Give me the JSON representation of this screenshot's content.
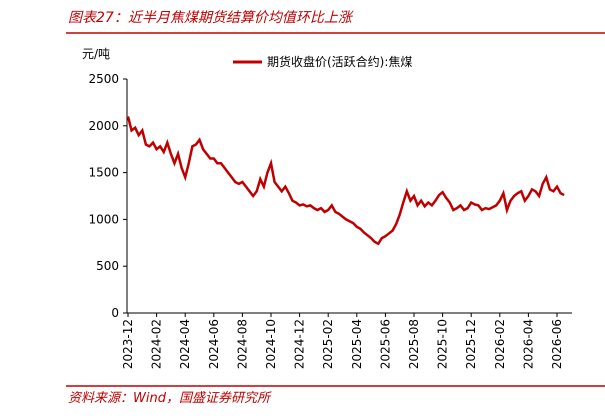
{
  "chart_data": {
    "type": "line",
    "title": "图表27：近半月焦煤期货结算价均值环比上涨",
    "y_label": "元/吨",
    "source": "资料来源：Wind，国盛证券研究所",
    "categories": [
      "2023-12",
      null,
      null,
      null,
      null,
      null,
      null,
      null,
      "2024-02",
      null,
      null,
      null,
      null,
      null,
      null,
      null,
      "2024-04",
      null,
      null,
      null,
      null,
      null,
      null,
      null,
      "2024-06",
      null,
      null,
      null,
      null,
      null,
      null,
      null,
      "2024-08",
      null,
      null,
      null,
      null,
      null,
      null,
      null,
      "2024-10",
      null,
      null,
      null,
      null,
      null,
      null,
      null,
      "2024-12",
      null,
      null,
      null,
      null,
      null,
      null,
      null,
      "2025-02",
      null,
      null,
      null,
      null,
      null,
      null,
      null,
      "2025-04",
      null,
      null,
      null,
      null,
      null,
      null,
      null,
      "2025-06",
      null,
      null,
      null,
      null,
      null,
      null,
      null,
      "2025-08",
      null,
      null,
      null,
      null,
      null,
      null,
      null,
      "2025-10",
      null,
      null,
      null,
      null,
      null,
      null,
      null,
      "2025-12",
      null,
      null,
      null,
      null,
      null,
      null,
      null,
      "2026-02",
      null,
      null,
      null,
      null,
      null,
      null,
      null,
      "2026-04",
      null,
      null,
      null,
      null,
      null,
      null,
      null,
      "2026-06",
      null,
      null
    ],
    "series": [
      {
        "name": "期货收盘价(活跃合约):焦煤",
        "color": "#c00000",
        "values": [
          2100,
          1950,
          1980,
          1900,
          1950,
          1800,
          1780,
          1820,
          1750,
          1780,
          1720,
          1820,
          1700,
          1600,
          1700,
          1550,
          1450,
          1600,
          1780,
          1800,
          1850,
          1750,
          1700,
          1650,
          1650,
          1600,
          1600,
          1550,
          1500,
          1450,
          1400,
          1380,
          1400,
          1350,
          1300,
          1250,
          1300,
          1430,
          1350,
          1500,
          1600,
          1400,
          1350,
          1300,
          1350,
          1280,
          1200,
          1180,
          1150,
          1160,
          1140,
          1150,
          1120,
          1100,
          1120,
          1080,
          1100,
          1150,
          1080,
          1060,
          1030,
          1000,
          980,
          960,
          920,
          900,
          860,
          830,
          800,
          760,
          740,
          800,
          820,
          850,
          880,
          950,
          1050,
          1180,
          1300,
          1200,
          1250,
          1150,
          1200,
          1140,
          1180,
          1150,
          1200,
          1260,
          1290,
          1230,
          1180,
          1100,
          1120,
          1150,
          1100,
          1120,
          1180,
          1160,
          1150,
          1100,
          1120,
          1110,
          1130,
          1150,
          1200,
          1280,
          1100,
          1200,
          1250,
          1280,
          1300,
          1200,
          1250,
          1320,
          1300,
          1250,
          1380,
          1450,
          1320,
          1300,
          1350,
          1280,
          1260
        ]
      }
    ],
    "ylim": [
      0,
      2500
    ],
    "yticks": [
      0,
      500,
      1000,
      1500,
      2000,
      2500
    ]
  }
}
